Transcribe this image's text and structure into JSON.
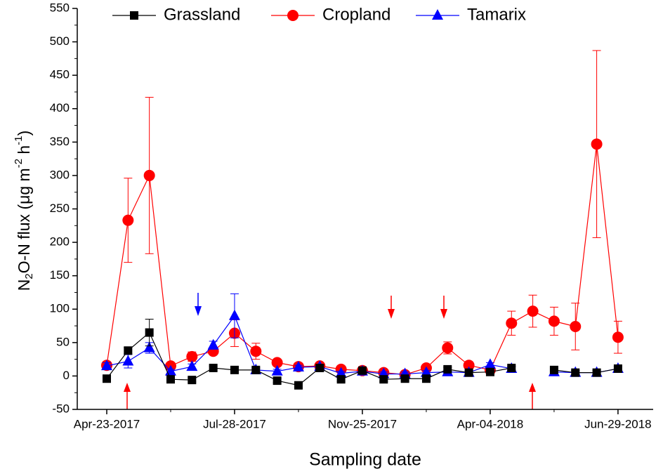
{
  "chart_data": {
    "type": "line",
    "xlabel": "Sampling date",
    "ylabel_parts": [
      "N",
      "2",
      "O-N flux (μg m",
      "-2",
      " h",
      "-1",
      ")"
    ],
    "categories": [
      "Apr-23-2017",
      null,
      null,
      null,
      null,
      null,
      "Jul-28-2017",
      null,
      null,
      null,
      null,
      null,
      "Nov-25-2017",
      null,
      null,
      null,
      null,
      null,
      "Apr-04-2018",
      null,
      null,
      null,
      null,
      null,
      "Jun-29-2018"
    ],
    "ylim": [
      -50,
      550
    ],
    "yticks": [
      -50,
      0,
      50,
      100,
      150,
      200,
      250,
      300,
      350,
      400,
      450,
      500,
      550
    ],
    "series": [
      {
        "name": "Grassland",
        "color": "#000000",
        "marker": "square",
        "values": [
          -4,
          38,
          65,
          -5,
          -6,
          12,
          9,
          9,
          -7,
          -14,
          12,
          -5,
          8,
          -5,
          -4,
          -4,
          10,
          5,
          6,
          12,
          null,
          9,
          5,
          5,
          11
        ],
        "errors": [
          3,
          5,
          20,
          3,
          3,
          3,
          3,
          3,
          3,
          3,
          3,
          3,
          3,
          3,
          3,
          3,
          3,
          3,
          3,
          3,
          null,
          3,
          3,
          3,
          3
        ]
      },
      {
        "name": "Cropland",
        "color": "#ff0000",
        "marker": "circle",
        "values": [
          16,
          233,
          300,
          15,
          29,
          37,
          64,
          37,
          20,
          14,
          15,
          10,
          8,
          5,
          2,
          12,
          42,
          16,
          9,
          79,
          97,
          82,
          74,
          347,
          58
        ],
        "errors": [
          4,
          63,
          117,
          4,
          7,
          5,
          20,
          12,
          4,
          3,
          3,
          3,
          3,
          3,
          3,
          3,
          9,
          4,
          3,
          18,
          24,
          21,
          35,
          140,
          24
        ]
      },
      {
        "name": "Tamarix",
        "color": "#0000ff",
        "marker": "triangle",
        "values": [
          15,
          22,
          42,
          7,
          14,
          46,
          90,
          9,
          7,
          13,
          14,
          4,
          7,
          3,
          3,
          5,
          6,
          5,
          17,
          11,
          null,
          6,
          5,
          5,
          11
        ],
        "errors": [
          5,
          10,
          8,
          3,
          4,
          6,
          33,
          3,
          3,
          3,
          3,
          3,
          3,
          3,
          3,
          3,
          3,
          3,
          3,
          3,
          null,
          3,
          3,
          3,
          3
        ]
      }
    ],
    "legend": "top"
  }
}
